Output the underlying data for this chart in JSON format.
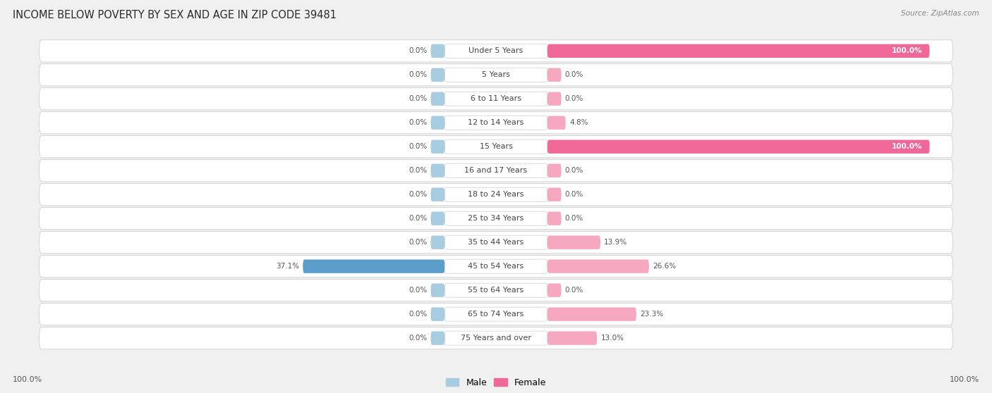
{
  "title": "INCOME BELOW POVERTY BY SEX AND AGE IN ZIP CODE 39481",
  "source": "Source: ZipAtlas.com",
  "categories": [
    "Under 5 Years",
    "5 Years",
    "6 to 11 Years",
    "12 to 14 Years",
    "15 Years",
    "16 and 17 Years",
    "18 to 24 Years",
    "25 to 34 Years",
    "35 to 44 Years",
    "45 to 54 Years",
    "55 to 64 Years",
    "65 to 74 Years",
    "75 Years and over"
  ],
  "male_values": [
    0.0,
    0.0,
    0.0,
    0.0,
    0.0,
    0.0,
    0.0,
    0.0,
    0.0,
    37.1,
    0.0,
    0.0,
    0.0
  ],
  "female_values": [
    100.0,
    0.0,
    0.0,
    4.8,
    100.0,
    0.0,
    0.0,
    0.0,
    13.9,
    26.6,
    0.0,
    23.3,
    13.0
  ],
  "male_color_light": "#a8cce0",
  "male_color_strong": "#5b9ec9",
  "female_color_light": "#f5a8c0",
  "female_color_strong": "#f06898",
  "bg_fig_color": "#f0f0f0",
  "row_bg_color": "#ffffff",
  "row_border": "#d4d4d4",
  "label_bg": "#ffffff",
  "title_color": "#2a2a2a",
  "source_color": "#888888",
  "value_color": "#555555",
  "cat_color": "#444444",
  "title_fontsize": 10.5,
  "label_fontsize": 8.0,
  "value_fontsize": 7.5,
  "legend_male": "Male",
  "legend_female": "Female",
  "axis_label_left": "100.0%",
  "axis_label_right": "100.0%",
  "scale": 0.82
}
